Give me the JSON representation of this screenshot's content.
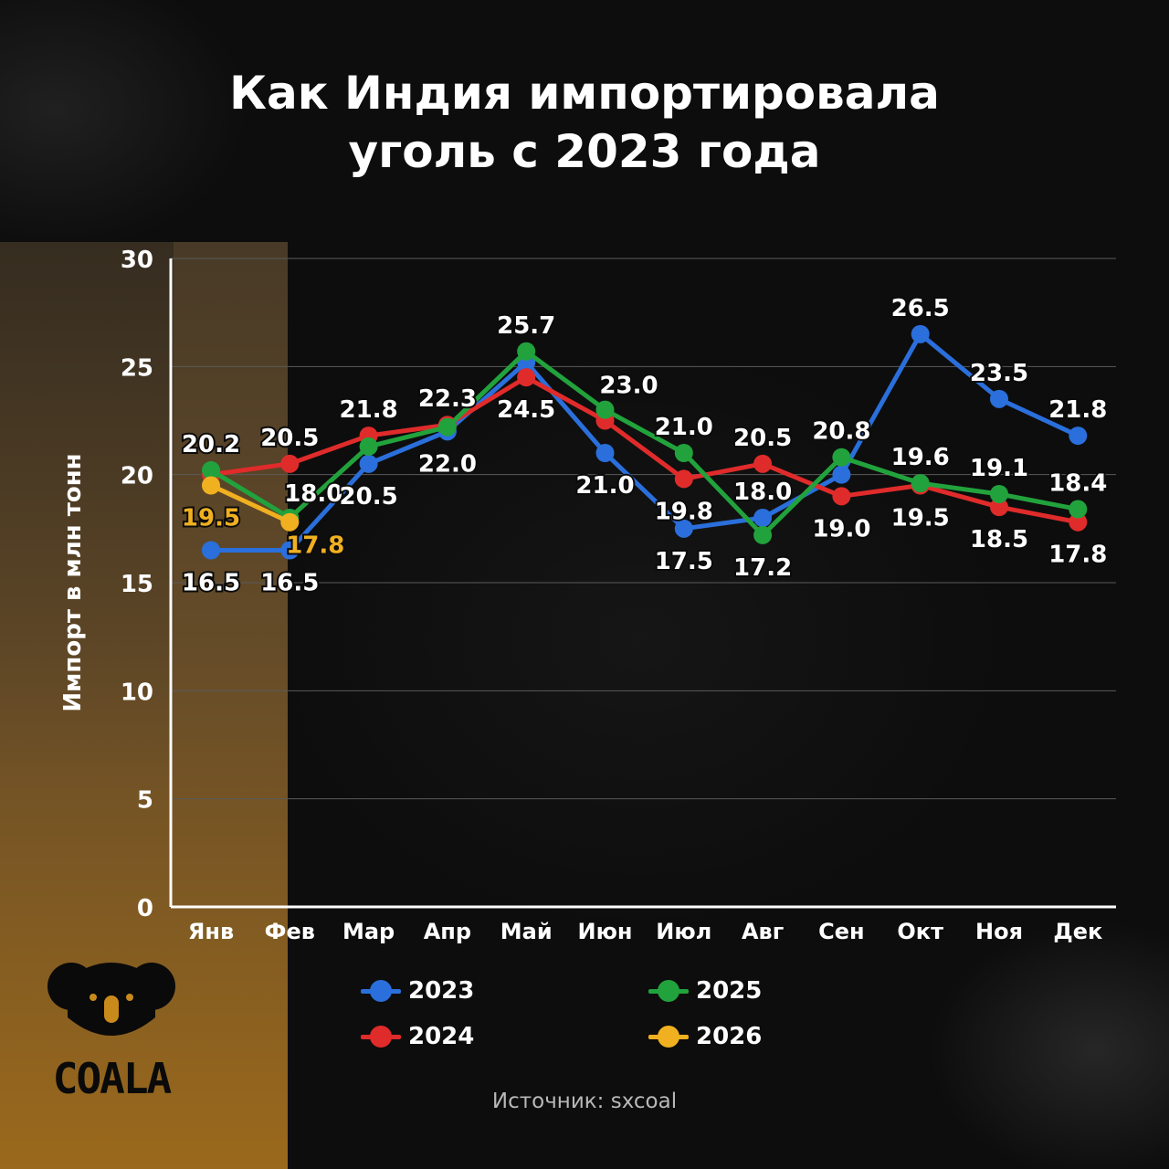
{
  "title_lines": [
    "Как Индия импортировала",
    "уголь с 2023 года"
  ],
  "source": "Источник: sxcoal",
  "logo": {
    "text": "COALA",
    "icon": "koala-icon"
  },
  "colors": {
    "2023": "#2a6fdb",
    "2024": "#e02b2b",
    "2025": "#22a23c",
    "2026": "#f0b020",
    "label_2026": "#f0b020",
    "grid": "#5a5a5a",
    "axis": "#ffffff"
  },
  "chart_data": {
    "type": "line",
    "title": "Как Индия импортировала уголь с 2023 года",
    "xlabel": "",
    "ylabel": "Импорт в млн тонн",
    "ylim": [
      0,
      30
    ],
    "yticks": [
      0,
      5,
      10,
      15,
      20,
      25,
      30
    ],
    "grid": true,
    "legend_position": "bottom",
    "categories": [
      "Янв",
      "Фев",
      "Мар",
      "Апр",
      "Май",
      "Июн",
      "Июл",
      "Авг",
      "Сен",
      "Окт",
      "Ноя",
      "Дек"
    ],
    "series": [
      {
        "name": "2023",
        "values": [
          16.5,
          16.5,
          20.5,
          22.0,
          25.2,
          21.0,
          17.5,
          18.0,
          20.0,
          26.5,
          23.5,
          21.8
        ]
      },
      {
        "name": "2024",
        "values": [
          20.0,
          20.5,
          21.8,
          22.3,
          24.5,
          22.5,
          19.8,
          20.5,
          19.0,
          19.5,
          18.5,
          17.8
        ]
      },
      {
        "name": "2025",
        "values": [
          20.2,
          18.0,
          21.3,
          22.2,
          25.7,
          23.0,
          21.0,
          17.2,
          20.8,
          19.6,
          19.1,
          18.4
        ]
      },
      {
        "name": "2026",
        "values": [
          19.5,
          17.8,
          null,
          null,
          null,
          null,
          null,
          null,
          null,
          null,
          null,
          null
        ]
      }
    ],
    "data_labels": [
      {
        "text": "20.2",
        "series": "2025",
        "index": 0,
        "pos": "above"
      },
      {
        "text": "19.5",
        "series": "2026",
        "index": 0,
        "pos": "below",
        "color": "#f0b020"
      },
      {
        "text": "16.5",
        "series": "2023",
        "index": 0,
        "pos": "below"
      },
      {
        "text": "20.5",
        "series": "2024",
        "index": 1,
        "pos": "above"
      },
      {
        "text": "18.0",
        "series": "2025",
        "index": 1,
        "pos": "above-right"
      },
      {
        "text": "17.8",
        "series": "2026",
        "index": 1,
        "pos": "below-right",
        "color": "#f0b020"
      },
      {
        "text": "16.5",
        "series": "2023",
        "index": 1,
        "pos": "below"
      },
      {
        "text": "21.8",
        "series": "2024",
        "index": 2,
        "pos": "above"
      },
      {
        "text": "20.5",
        "series": "2023",
        "index": 2,
        "pos": "below"
      },
      {
        "text": "22.3",
        "series": "2024",
        "index": 3,
        "pos": "above"
      },
      {
        "text": "22.0",
        "series": "2023",
        "index": 3,
        "pos": "below"
      },
      {
        "text": "25.7",
        "series": "2025",
        "index": 4,
        "pos": "above"
      },
      {
        "text": "24.5",
        "series": "2024",
        "index": 4,
        "pos": "below"
      },
      {
        "text": "23.0",
        "series": "2025",
        "index": 5,
        "pos": "above-right"
      },
      {
        "text": "21.0",
        "series": "2023",
        "index": 5,
        "pos": "below"
      },
      {
        "text": "21.0",
        "series": "2025",
        "index": 6,
        "pos": "above"
      },
      {
        "text": "19.8",
        "series": "2024",
        "index": 6,
        "pos": "below"
      },
      {
        "text": "17.5",
        "series": "2023",
        "index": 6,
        "pos": "below"
      },
      {
        "text": "20.5",
        "series": "2024",
        "index": 7,
        "pos": "above"
      },
      {
        "text": "18.0",
        "series": "2023",
        "index": 7,
        "pos": "above"
      },
      {
        "text": "17.2",
        "series": "2025",
        "index": 7,
        "pos": "below"
      },
      {
        "text": "20.8",
        "series": "2025",
        "index": 8,
        "pos": "above"
      },
      {
        "text": "19.0",
        "series": "2024",
        "index": 8,
        "pos": "below"
      },
      {
        "text": "26.5",
        "series": "2023",
        "index": 9,
        "pos": "above"
      },
      {
        "text": "19.6",
        "series": "2025",
        "index": 9,
        "pos": "above"
      },
      {
        "text": "19.5",
        "series": "2024",
        "index": 9,
        "pos": "below"
      },
      {
        "text": "23.5",
        "series": "2023",
        "index": 10,
        "pos": "above"
      },
      {
        "text": "19.1",
        "series": "2025",
        "index": 10,
        "pos": "above"
      },
      {
        "text": "18.5",
        "series": "2024",
        "index": 10,
        "pos": "below"
      },
      {
        "text": "21.8",
        "series": "2023",
        "index": 11,
        "pos": "above"
      },
      {
        "text": "18.4",
        "series": "2025",
        "index": 11,
        "pos": "above"
      },
      {
        "text": "17.8",
        "series": "2024",
        "index": 11,
        "pos": "below"
      }
    ]
  }
}
